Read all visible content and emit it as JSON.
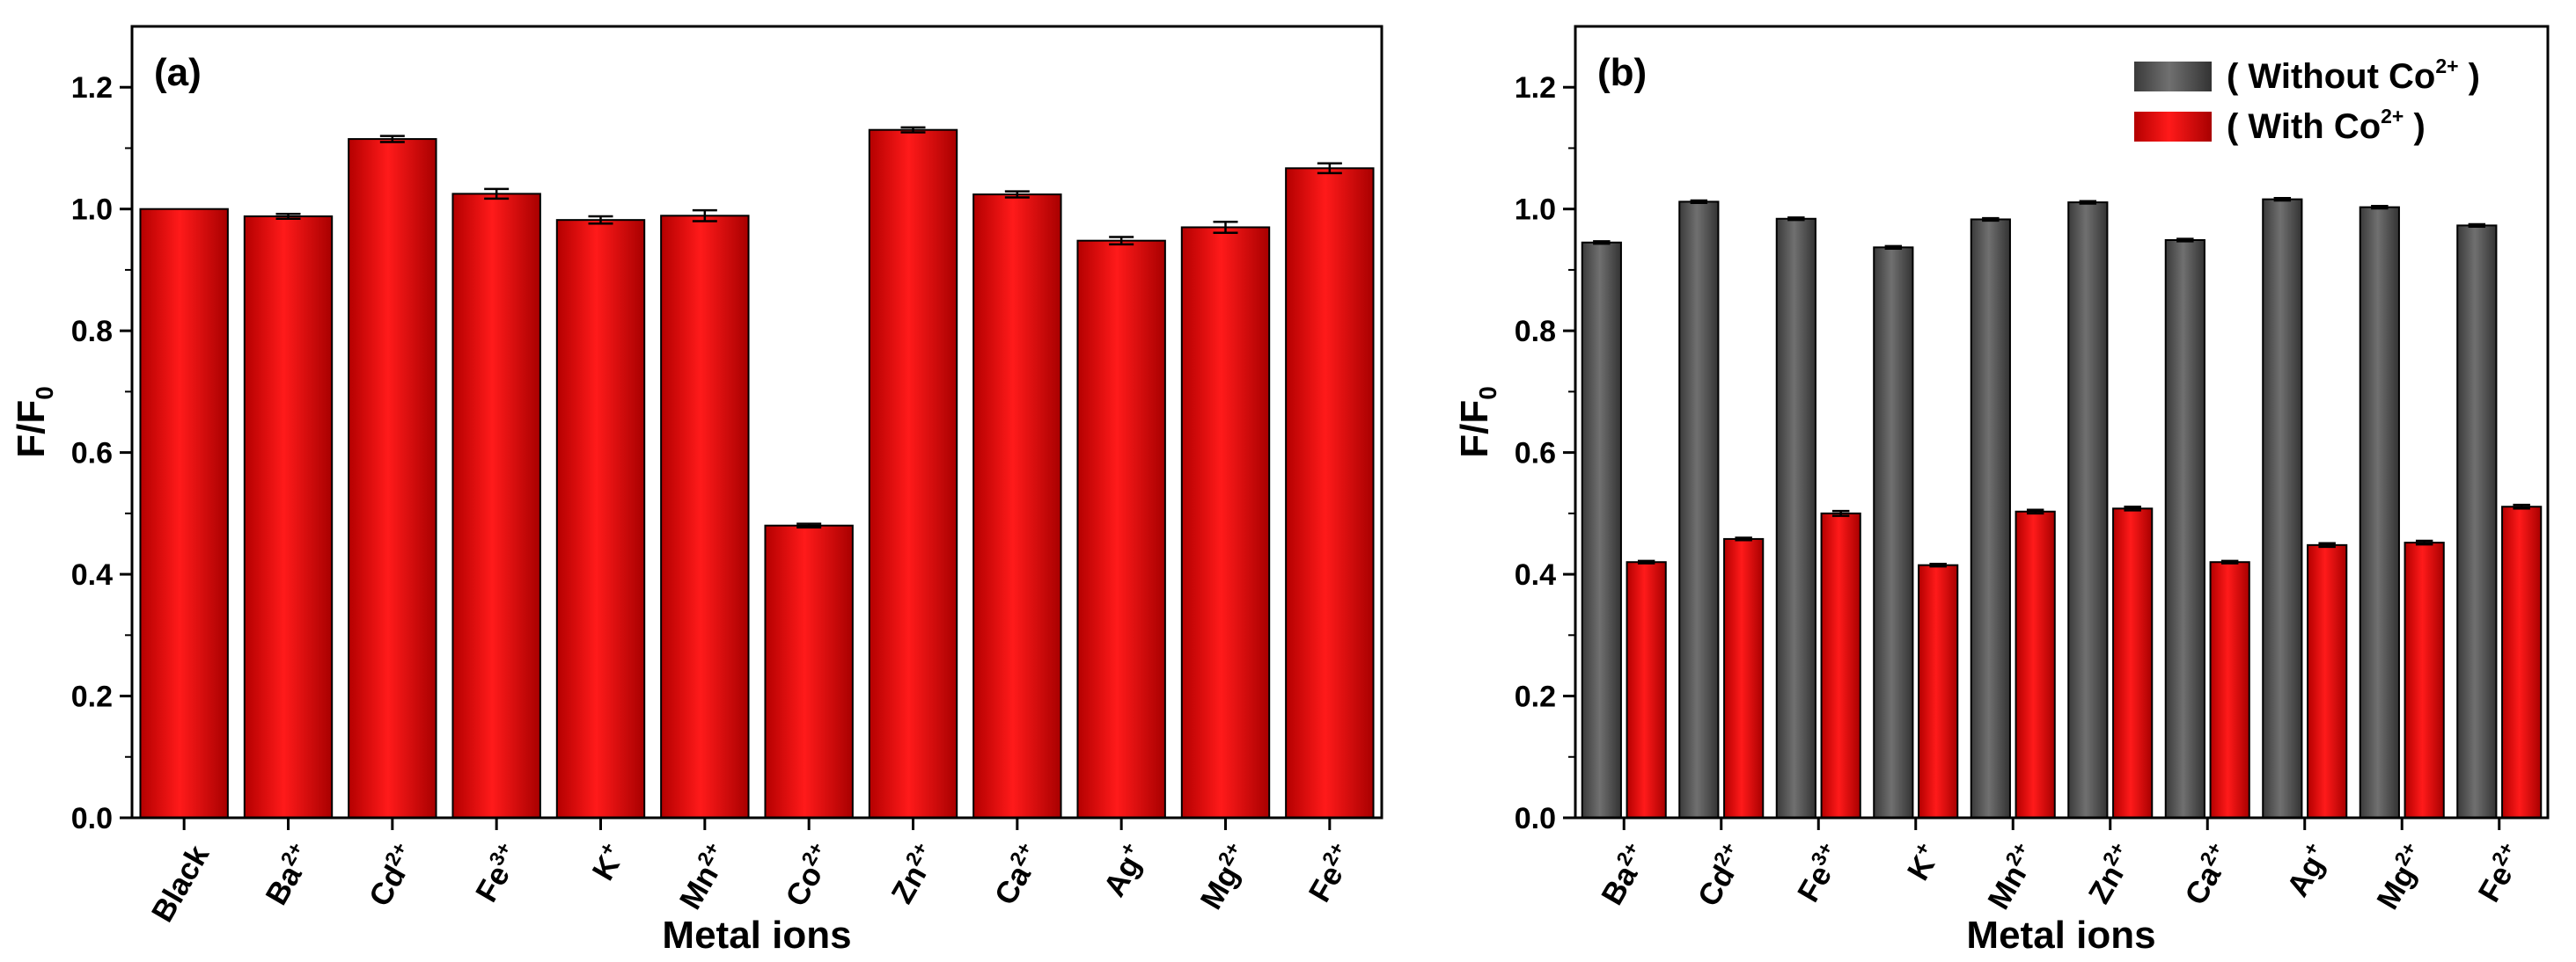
{
  "chart_data": [
    {
      "type": "bar",
      "panel_label": "(a)",
      "xlabel": "Metal ions",
      "ylabel": {
        "base": "F/F",
        "sub": "0"
      },
      "ylim": [
        0,
        1.3
      ],
      "yticks": [
        "0.0",
        "0.2",
        "0.4",
        "0.6",
        "0.8",
        "1.0",
        "1.2"
      ],
      "categories": [
        {
          "base": "Black",
          "sup": ""
        },
        {
          "base": "Ba",
          "sup": "2+"
        },
        {
          "base": "Cd",
          "sup": "2+"
        },
        {
          "base": "Fe",
          "sup": "3+"
        },
        {
          "base": "K",
          "sup": "+"
        },
        {
          "base": "Mn",
          "sup": "2+"
        },
        {
          "base": "Co",
          "sup": "2+"
        },
        {
          "base": "Zn",
          "sup": "2+"
        },
        {
          "base": "Ca",
          "sup": "2+"
        },
        {
          "base": "Ag",
          "sup": "+"
        },
        {
          "base": "Mg",
          "sup": "2+"
        },
        {
          "base": "Fe",
          "sup": "2+"
        }
      ],
      "series": [
        {
          "color": "#e00000",
          "values": [
            1.0,
            0.988,
            1.115,
            1.025,
            0.982,
            0.989,
            0.48,
            1.13,
            1.024,
            0.948,
            0.97,
            1.067
          ],
          "errors": [
            0.0,
            0.004,
            0.005,
            0.008,
            0.006,
            0.009,
            0.003,
            0.004,
            0.005,
            0.006,
            0.009,
            0.008
          ]
        }
      ],
      "grid": false,
      "legend": "none"
    },
    {
      "type": "bar",
      "panel_label": "(b)",
      "xlabel": "Metal ions",
      "ylabel": {
        "base": "F/F",
        "sub": "0"
      },
      "ylim": [
        0,
        1.3
      ],
      "yticks": [
        "0.0",
        "0.2",
        "0.4",
        "0.6",
        "0.8",
        "1.0",
        "1.2"
      ],
      "categories": [
        {
          "base": "Ba",
          "sup": "2+"
        },
        {
          "base": "Cd",
          "sup": "2+"
        },
        {
          "base": "Fe",
          "sup": "3+"
        },
        {
          "base": "K",
          "sup": "+"
        },
        {
          "base": "Mn",
          "sup": "2+"
        },
        {
          "base": "Zn",
          "sup": "2+"
        },
        {
          "base": "Ca",
          "sup": "2+"
        },
        {
          "base": "Ag",
          "sup": "+"
        },
        {
          "base": "Mg",
          "sup": "2+"
        },
        {
          "base": "Fe",
          "sup": "2+"
        }
      ],
      "series": [
        {
          "name": {
            "pre": "( Without Co",
            "sup": "2+",
            "post": " )"
          },
          "color": "#555555",
          "values": [
            0.945,
            1.012,
            0.984,
            0.937,
            0.983,
            1.011,
            0.949,
            1.016,
            1.003,
            0.973
          ],
          "errors": [
            0.002,
            0.002,
            0.002,
            0.002,
            0.002,
            0.002,
            0.002,
            0.002,
            0.002,
            0.002
          ]
        },
        {
          "name": {
            "pre": "( With Co",
            "sup": "2+",
            "post": " )"
          },
          "color": "#e00000",
          "values": [
            0.42,
            0.458,
            0.5,
            0.415,
            0.503,
            0.508,
            0.42,
            0.448,
            0.452,
            0.511
          ],
          "errors": [
            0.002,
            0.002,
            0.004,
            0.002,
            0.003,
            0.003,
            0.002,
            0.003,
            0.003,
            0.003
          ]
        }
      ],
      "grid": false,
      "legend": "top-right"
    }
  ]
}
